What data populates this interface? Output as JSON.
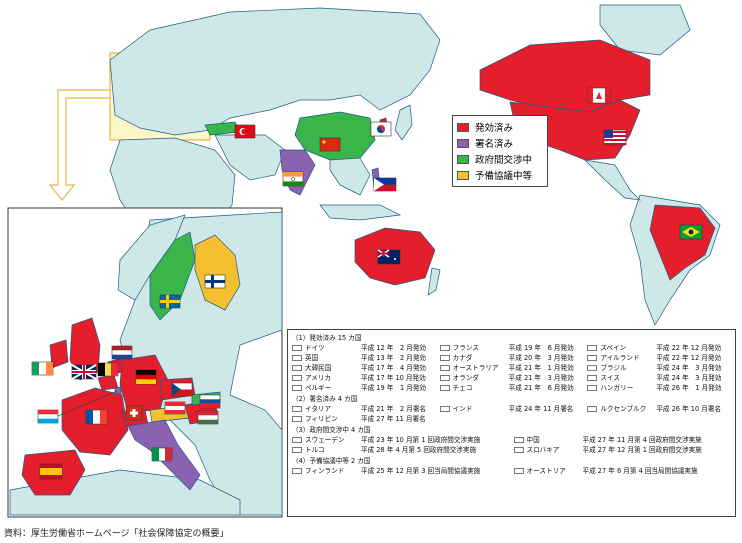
{
  "legend": [
    {
      "label": "発効済み",
      "color": "#e41e2b"
    },
    {
      "label": "署名済み",
      "color": "#8a62b0"
    },
    {
      "label": "政府間交渉中",
      "color": "#3ab54a"
    },
    {
      "label": "予備協議中等",
      "color": "#f5c030"
    }
  ],
  "sections": [
    {
      "title": "（1）発効済み 15 カ国",
      "cols": 3,
      "entries": [
        {
          "name": "ドイツ",
          "date": "平成 12 年　2 月発効"
        },
        {
          "name": "英国",
          "date": "平成 13 年　2 月発効"
        },
        {
          "name": "大韓民国",
          "date": "平成 17 年　4 月発効"
        },
        {
          "name": "アメリカ",
          "date": "平成 17 年 10 月発効"
        },
        {
          "name": "ベルギー",
          "date": "平成 19 年　1 月発効"
        },
        {
          "name": "フランス",
          "date": "平成 19 年　6 月発効"
        },
        {
          "name": "カナダ",
          "date": "平成 20 年　3 月発効"
        },
        {
          "name": "オーストラリア",
          "date": "平成 21 年　1 月発効"
        },
        {
          "name": "オランダ",
          "date": "平成 21 年　3 月発効"
        },
        {
          "name": "チェコ",
          "date": "平成 21 年　6 月発効"
        },
        {
          "name": "スペイン",
          "date": "平成 22 年 12 月発効"
        },
        {
          "name": "アイルランド",
          "date": "平成 22 年 12 月発効"
        },
        {
          "name": "ブラジル",
          "date": "平成 24 年　3 月発効"
        },
        {
          "name": "スイス",
          "date": "平成 24 年　3 月発効"
        },
        {
          "name": "ハンガリー",
          "date": "平成 26 年　1 月発効"
        }
      ]
    },
    {
      "title": "（2）署名済み 4 カ国",
      "cols": 3,
      "entries": [
        {
          "name": "イタリア",
          "date": "平成 21 年　2 月署名"
        },
        {
          "name": "フィリピン",
          "date": "平成 27 年 11 月署名"
        },
        {
          "name": "インド",
          "date": "平成 24 年 11 月署名"
        },
        {
          "name": "",
          "date": ""
        },
        {
          "name": "ルクセンブルク",
          "date": "平成 26 年 10 月署名"
        },
        {
          "name": "",
          "date": ""
        }
      ]
    },
    {
      "title": "（3）政府間交渉中 4 カ国",
      "cols": 2,
      "entries": [
        {
          "name": "スウェーデン",
          "date": "平成 23 年 10 月第 1 回政府間交渉実施"
        },
        {
          "name": "トルコ",
          "date": "平成 28 年 4 月第 5 回政府間交渉実施"
        },
        {
          "name": "中国",
          "date": "平成 27 年 11 月第 4 回政府間交渉実施"
        },
        {
          "name": "スロバキア",
          "date": "平成 27 年 12 月第 1 回政府間交渉実施"
        }
      ]
    },
    {
      "title": "（4）予備協議中等 2 カ国",
      "cols": 2,
      "entries": [
        {
          "name": "フィンランド",
          "date": "平成 25 年 12 月第 3 回当局間協議実施"
        },
        {
          "name": "オーストリア",
          "date": "平成 27 年 6 月第 4 回当局間協議実施"
        }
      ]
    }
  ],
  "source": "資料：厚生労働省ホームページ「社会保障協定の概要」",
  "colors": {
    "ocean": "#ffffff",
    "land": "#cde8e6",
    "border": "#1e5b88",
    "highlight_box": "#fbf6c8"
  },
  "flags": [
    "canada-flag",
    "usa-flag",
    "turkey-flag",
    "korea-flag",
    "china-flag",
    "india-flag",
    "philippines-flag",
    "australia-flag",
    "brazil-flag",
    "uk-flag",
    "ireland-flag",
    "germany-flag",
    "netherlands-flag",
    "belgium-flag",
    "luxembourg-flag",
    "france-flag",
    "switzerland-flag",
    "spain-flag",
    "italy-flag",
    "czech-flag",
    "slovakia-flag",
    "hungary-flag",
    "austria-flag",
    "sweden-flag",
    "finland-flag"
  ]
}
